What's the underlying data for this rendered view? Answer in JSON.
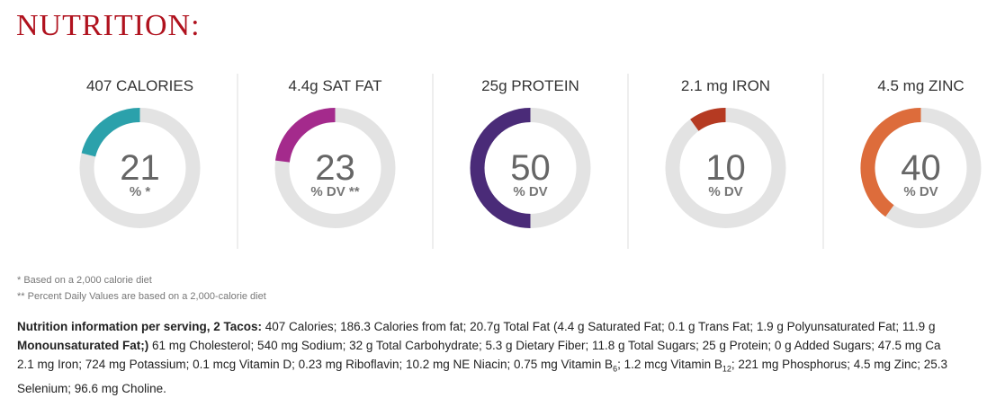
{
  "header": {
    "title": "NUTRITION:"
  },
  "items": [
    {
      "label": "407 CALORIES",
      "percent": 21,
      "unit": "% *",
      "color": "#2ba1ab"
    },
    {
      "label": "4.4g SAT FAT",
      "percent": 23,
      "unit": "% DV **",
      "color": "#a42a8c"
    },
    {
      "label": "25g PROTEIN",
      "percent": 50,
      "unit": "% DV",
      "color": "#4a2b78"
    },
    {
      "label": "2.1 mg IRON",
      "percent": 10,
      "unit": "% DV",
      "color": "#b53a22"
    },
    {
      "label": "4.5 mg ZINC",
      "percent": 40,
      "unit": "% DV",
      "color": "#dd6c3b"
    }
  ],
  "footnotes": [
    "* Based on a 2,000 calorie diet",
    "** Percent Daily Values are based on a 2,000-calorie diet"
  ],
  "details": [
    [
      {
        "text": "Nutrition information per serving, 2 Tacos:",
        "style": "bold"
      },
      {
        "text": " 407 Calories; 186.3 Calories from fat; 20.7g Total Fat (4.4 g Saturated Fat; 0.1 g Trans Fat; 1.9 g Polyunsaturated Fat; 11.9 g"
      }
    ],
    [
      {
        "text": "Monounsaturated Fat;)",
        "style": "bold"
      },
      {
        "text": " 61 mg Cholesterol; 540 mg Sodium; 32 g Total Carbohydrate; 5.3 g Dietary Fiber; 11.8 g Total Sugars; 25 g Protein; 0 g Added Sugars; 47.5 mg Ca"
      }
    ],
    [
      {
        "text": "2.1 mg Iron; 724 mg Potassium; 0.1 mcg Vitamin D; 0.23 mg Riboflavin; 10.2 mg NE Niacin; 0.75 mg Vitamin B"
      },
      {
        "text": "6",
        "style": "sub"
      },
      {
        "text": "; 1.2 mcg Vitamin B"
      },
      {
        "text": "12",
        "style": "sub"
      },
      {
        "text": "; 221 mg Phosphorus; 4.5 mg Zinc; 25.3"
      }
    ],
    [
      {
        "text": "Selenium; 96.6 mg Choline."
      }
    ]
  ]
}
